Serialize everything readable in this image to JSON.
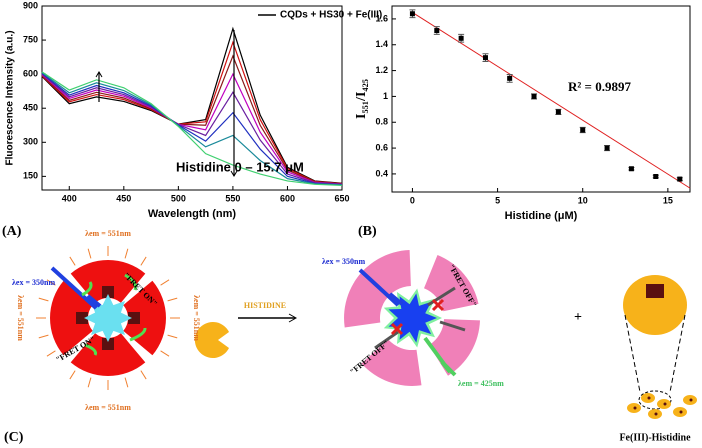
{
  "chart_data": [
    {
      "type": "line",
      "x_label": "Wavelength (nm)",
      "y_label": "Fluorescence Intensity (a.u.)",
      "legend": "CQDs + HS30 + Fe(III)",
      "annotation": "Histidine 0 – 15.7 μM",
      "x": [
        375,
        400,
        425,
        450,
        475,
        500,
        525,
        550,
        575,
        600,
        625,
        650
      ],
      "series": [
        {
          "color": "#000000",
          "values": [
            590,
            470,
            500,
            480,
            440,
            380,
            400,
            800,
            420,
            190,
            130,
            120
          ]
        },
        {
          "color": "#d01010",
          "values": [
            592,
            478,
            510,
            488,
            444,
            380,
            390,
            740,
            400,
            185,
            128,
            119
          ]
        },
        {
          "color": "#8b1a1a",
          "values": [
            595,
            485,
            520,
            495,
            448,
            380,
            375,
            680,
            375,
            178,
            126,
            118
          ]
        },
        {
          "color": "#c000c0",
          "values": [
            598,
            493,
            530,
            503,
            452,
            379,
            355,
            600,
            345,
            170,
            124,
            116
          ]
        },
        {
          "color": "#6a1fa0",
          "values": [
            601,
            500,
            540,
            510,
            456,
            378,
            330,
            520,
            310,
            160,
            122,
            115
          ]
        },
        {
          "color": "#2030c0",
          "values": [
            604,
            508,
            550,
            518,
            460,
            376,
            305,
            430,
            270,
            150,
            119,
            113
          ]
        },
        {
          "color": "#1a8a9a",
          "values": [
            607,
            518,
            562,
            528,
            465,
            373,
            280,
            330,
            220,
            140,
            117,
            112
          ]
        },
        {
          "color": "#40d070",
          "values": [
            610,
            530,
            575,
            540,
            470,
            370,
            250,
            200,
            160,
            130,
            115,
            110
          ]
        }
      ],
      "xlim": [
        375,
        650
      ],
      "xticks": [
        400,
        450,
        500,
        550,
        600,
        650
      ],
      "ylim": [
        90,
        900
      ],
      "yticks": [
        150,
        300,
        450,
        600,
        750,
        900
      ]
    },
    {
      "type": "scatter",
      "x_label": "Histidine (μM)",
      "y_label": "I₅₅₁/I₄₂₅",
      "annotation": "R² = 0.9897",
      "x": [
        0,
        1.43,
        2.86,
        4.29,
        5.71,
        7.14,
        8.57,
        10,
        11.43,
        12.86,
        14.29,
        15.7
      ],
      "values": [
        1.64,
        1.51,
        1.45,
        1.3,
        1.14,
        1.0,
        0.88,
        0.74,
        0.6,
        0.44,
        0.38,
        0.36
      ],
      "errors": [
        0.03,
        0.03,
        0.03,
        0.03,
        0.03,
        0.02,
        0.02,
        0.02,
        0.02,
        0.01,
        0.01,
        0.01
      ],
      "color": "#000000",
      "fit": {
        "color": "#e02020",
        "x": [
          0,
          16.3
        ],
        "y": [
          1.65,
          0.29
        ]
      },
      "xlim": [
        -1.2,
        16.3
      ],
      "xticks": [
        0,
        5,
        10,
        15
      ],
      "ylim": [
        0.26,
        1.7
      ],
      "yticks": [
        0.4,
        0.6,
        0.8,
        1.0,
        1.2,
        1.4,
        1.6
      ]
    }
  ],
  "panel_labels": [
    "(A)",
    "(B)",
    "(C)"
  ],
  "diagram": {
    "lambda_ex_1": "λex = 350nm",
    "lambda_em_top": "λem = 551nm",
    "lambda_em_bottom": "λem = 551nm",
    "lambda_em_left": "λem = 551nm",
    "lambda_em_right": "λem = 551nm",
    "fret_on_1": "\"FRET ON\"",
    "fret_on_2": "\"FRET ON\"",
    "histidine": "HISTIDINE",
    "lambda_ex_2": "λex = 350nm",
    "fret_off_1": "\"FRET OFF\"",
    "fret_off_2": "\"FRET OFF\"",
    "lambda_em_425": "λem = 425nm",
    "plus": "+",
    "complex": "Fe(III)-Histidine"
  }
}
